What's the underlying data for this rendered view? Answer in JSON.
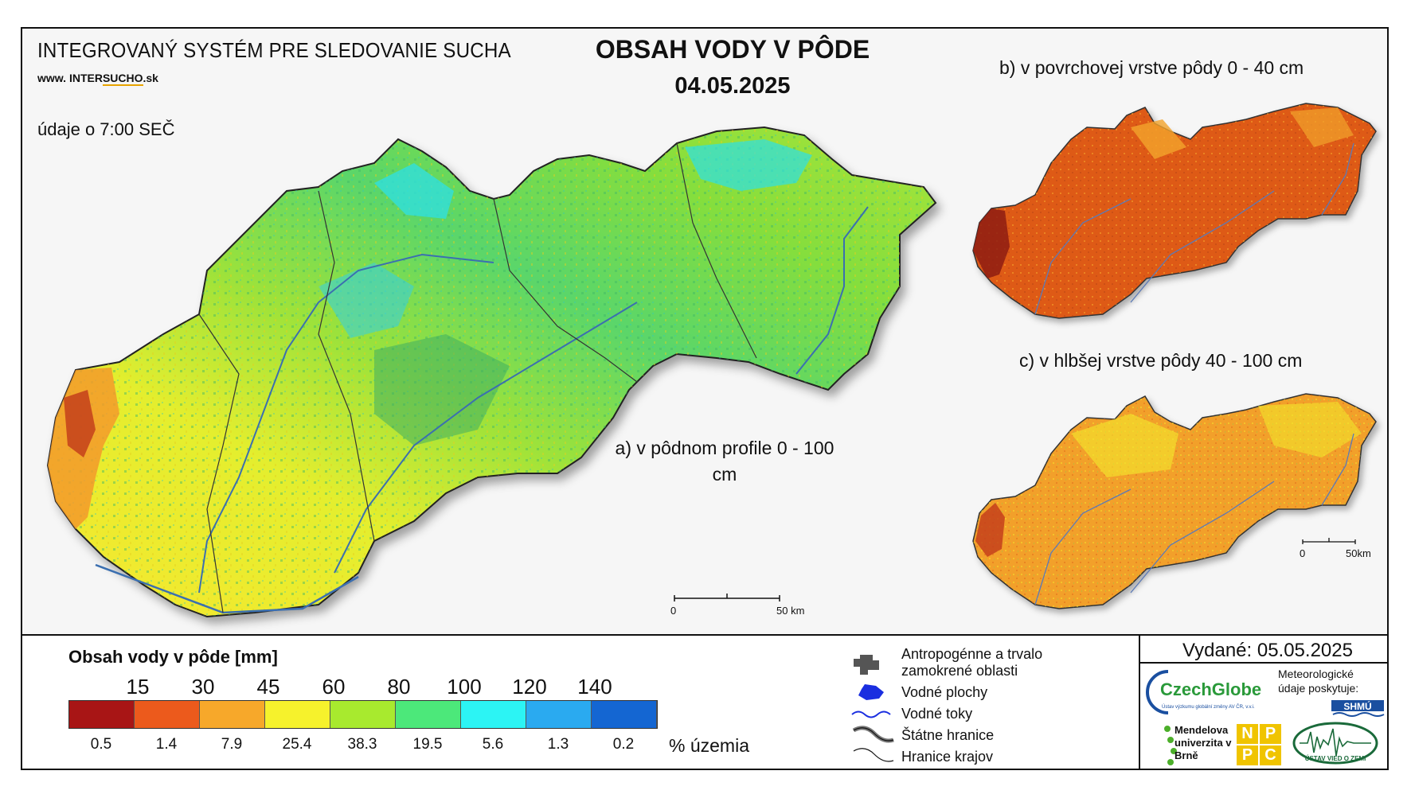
{
  "header": {
    "system_title": "INTEGROVANÝ SYSTÉM PRE SLEDOVANIE SUCHA",
    "url_prefix": "www.",
    "url_part1": "INTER",
    "url_part2": "SUCHO",
    "url_suffix": ".sk",
    "data_time": "údaje o 7:00 SEČ",
    "title": "OBSAH VODY V PÔDE",
    "date": "04.05.2025"
  },
  "maps": {
    "a_label": "a) v pôdnom profile 0 - 100 cm",
    "b_label": "b) v povrchovej vrstve pôdy 0 - 40 cm",
    "c_label": "c) v hlbšej vrstve pôdy 40 - 100 cm",
    "scale_main_zero": "0",
    "scale_main_end": "50 km",
    "scale_small_zero": "0",
    "scale_small_end": "50km"
  },
  "legend": {
    "title": "Obsah vody v pôde  [mm]",
    "thresholds": [
      "15",
      "30",
      "45",
      "60",
      "80",
      "100",
      "120",
      "140"
    ],
    "colors": [
      "#a81515",
      "#ec5a1c",
      "#f7a82a",
      "#f6f22c",
      "#a8ea2e",
      "#4ce87a",
      "#2cf4f4",
      "#2aaaf0",
      "#1466d2"
    ],
    "percentages": [
      "0.5",
      "1.4",
      "7.9",
      "25.4",
      "38.3",
      "19.5",
      "5.6",
      "1.3",
      "0.2"
    ],
    "percent_unit": "% územia"
  },
  "symbols": {
    "anthropogenic": "Antropogénne a trvalo zamokrené oblasti",
    "water_bodies": "Vodné plochy",
    "streams": "Vodné toky",
    "state_border": "Štátne hranice",
    "region_border": "Hranice krajov"
  },
  "footer": {
    "issued": "Vydané: 05.05.2025",
    "czechglobe": "CzechGlobe",
    "czechglobe_sub": "Ústav výzkumu globální změny AV ČR, v.v.i.",
    "meteo": "Meteorologické údaje poskytuje:",
    "shmu": "SHMÚ",
    "mendel": "Mendelova univerzita v Brně",
    "nppc_letters": [
      "N",
      "P",
      "P",
      "C"
    ],
    "uvz": "ÚSTAV VIED O ZEMI"
  }
}
